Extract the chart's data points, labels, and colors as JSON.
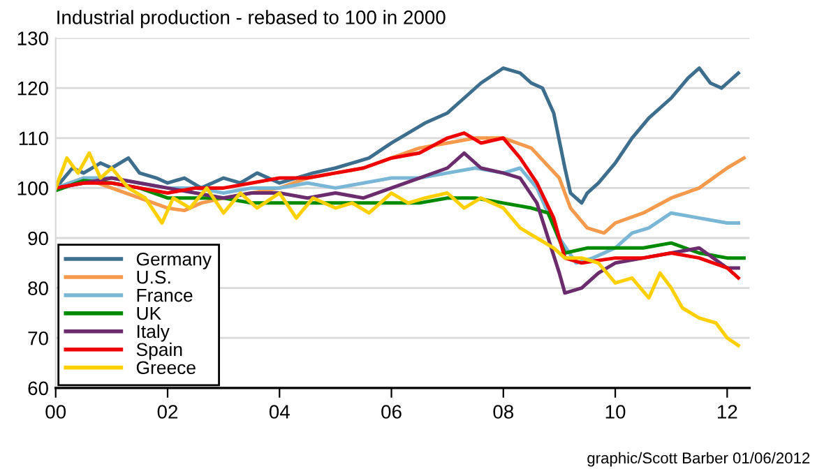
{
  "chart_data": {
    "type": "line",
    "title": "Industrial production - rebased to 100 in 2000",
    "annotations": [
      "graphic/Scott Barber 01/06/2012"
    ],
    "xlim": [
      0,
      12.4
    ],
    "xticks": [
      {
        "value": 0,
        "label": "00"
      },
      {
        "value": 2,
        "label": "02"
      },
      {
        "value": 4,
        "label": "04"
      },
      {
        "value": 6,
        "label": "06"
      },
      {
        "value": 8,
        "label": "08"
      },
      {
        "value": 10,
        "label": "10"
      },
      {
        "value": 12,
        "label": "12"
      }
    ],
    "ylim": [
      60,
      130
    ],
    "yticks": [
      60,
      70,
      80,
      90,
      100,
      110,
      120,
      130
    ],
    "grid": "y",
    "legend": "bottom left",
    "marker": "none",
    "line_style": "solid",
    "series": [
      {
        "name": "Germany",
        "color": "#3e6e8e",
        "x": [
          0,
          0.3,
          0.5,
          0.8,
          1.0,
          1.3,
          1.5,
          1.8,
          2.0,
          2.3,
          2.6,
          3.0,
          3.3,
          3.6,
          4.0,
          4.3,
          4.6,
          5.0,
          5.3,
          5.6,
          6.0,
          6.3,
          6.6,
          7.0,
          7.3,
          7.6,
          8.0,
          8.3,
          8.5,
          8.7,
          8.9,
          9.1,
          9.2,
          9.4,
          9.5,
          9.7,
          10.0,
          10.3,
          10.6,
          11.0,
          11.3,
          11.5,
          11.7,
          11.9,
          12.0,
          12.2
        ],
        "values": [
          100,
          104,
          103,
          105,
          104,
          106,
          103,
          102,
          101,
          102,
          100,
          102,
          101,
          103,
          101,
          102,
          103,
          104,
          105,
          106,
          109,
          111,
          113,
          115,
          118,
          121,
          124,
          123,
          121,
          120,
          115,
          104,
          99,
          97,
          99,
          101,
          105,
          110,
          114,
          118,
          122,
          124,
          121,
          120,
          121,
          123
        ]
      },
      {
        "name": "U.S.",
        "color": "#f59a4c",
        "x": [
          0,
          0.5,
          1.0,
          1.5,
          2.0,
          2.3,
          2.6,
          3.0,
          3.5,
          4.0,
          4.5,
          5.0,
          5.5,
          6.0,
          6.5,
          7.0,
          7.5,
          8.0,
          8.5,
          9.0,
          9.2,
          9.5,
          9.8,
          10.0,
          10.5,
          11.0,
          11.5,
          12.0,
          12.3
        ],
        "values": [
          100,
          102,
          100,
          98,
          96,
          95.5,
          97,
          98,
          99,
          100,
          102,
          103,
          104,
          106,
          108,
          109,
          110,
          110,
          108,
          102,
          96,
          92,
          91,
          93,
          95,
          98,
          100,
          104,
          106
        ]
      },
      {
        "name": "France",
        "color": "#7ab6d6",
        "x": [
          0,
          0.5,
          1,
          1.5,
          2,
          2.5,
          3,
          3.5,
          4,
          4.5,
          5,
          5.5,
          6,
          6.5,
          7,
          7.5,
          8,
          8.3,
          8.6,
          9.0,
          9.3,
          9.6,
          10,
          10.3,
          10.6,
          11,
          11.5,
          12,
          12.2
        ],
        "values": [
          100,
          102,
          102,
          101,
          100,
          100,
          99,
          100,
          100,
          101,
          100,
          101,
          102,
          102,
          103,
          104,
          103,
          104,
          100,
          90,
          85,
          86,
          88,
          91,
          92,
          95,
          94,
          93,
          93
        ]
      },
      {
        "name": "UK",
        "color": "#008a00",
        "x": [
          0,
          0.5,
          1,
          1.5,
          2,
          2.5,
          3,
          3.5,
          4,
          4.5,
          5,
          5.5,
          6,
          6.5,
          7,
          7.5,
          8,
          8.5,
          8.8,
          9.1,
          9.5,
          10,
          10.5,
          11,
          11.5,
          12,
          12.3
        ],
        "values": [
          99.5,
          101.5,
          101,
          100,
          98,
          98,
          98,
          97,
          97,
          97,
          97,
          97,
          97,
          97,
          98,
          98,
          97,
          96,
          95,
          87,
          88,
          88,
          88,
          89,
          87,
          86,
          86
        ]
      },
      {
        "name": "Italy",
        "color": "#6b2c6e",
        "x": [
          0,
          0.5,
          1,
          1.5,
          2,
          2.5,
          3,
          3.5,
          4,
          4.5,
          5,
          5.5,
          6,
          6.5,
          7,
          7.3,
          7.6,
          8,
          8.3,
          8.6,
          9.0,
          9.1,
          9.4,
          9.7,
          10,
          10.5,
          11,
          11.5,
          12,
          12.2
        ],
        "values": [
          100,
          101,
          102,
          101,
          100,
          99,
          98,
          99,
          99,
          98,
          99,
          98,
          100,
          102,
          104,
          107,
          104,
          103,
          102,
          97,
          83,
          79,
          80,
          83,
          85,
          86,
          87,
          88,
          84,
          84
        ]
      },
      {
        "name": "Spain",
        "color": "#ee0000",
        "x": [
          0,
          0.5,
          1,
          1.5,
          2,
          2.5,
          3,
          3.5,
          4,
          4.5,
          5,
          5.5,
          6,
          6.5,
          7,
          7.3,
          7.6,
          8,
          8.3,
          8.6,
          8.9,
          9.1,
          9.4,
          10,
          10.5,
          11,
          11.5,
          12,
          12.2
        ],
        "values": [
          100,
          101,
          101,
          100,
          99,
          100,
          100,
          101,
          102,
          102,
          103,
          104,
          106,
          107,
          110,
          111,
          109,
          110,
          106,
          101,
          94,
          86,
          85,
          86,
          86,
          87,
          86,
          84,
          82
        ]
      },
      {
        "name": "Greece",
        "color": "#ffd000",
        "x": [
          0,
          0.2,
          0.4,
          0.6,
          0.8,
          1.0,
          1.3,
          1.6,
          1.9,
          2.1,
          2.4,
          2.7,
          3.0,
          3.3,
          3.6,
          4.0,
          4.3,
          4.6,
          5.0,
          5.3,
          5.6,
          6.0,
          6.3,
          6.6,
          7.0,
          7.3,
          7.6,
          8.0,
          8.3,
          8.6,
          8.9,
          9.1,
          9.4,
          9.7,
          10.0,
          10.3,
          10.6,
          10.8,
          11.0,
          11.2,
          11.5,
          11.8,
          12.0,
          12.2
        ],
        "values": [
          100,
          106,
          103,
          107,
          102,
          104,
          100,
          98,
          93,
          98,
          96,
          100,
          95,
          99,
          96,
          99,
          94,
          98,
          96,
          97,
          95,
          99,
          97,
          98,
          99,
          96,
          98,
          96,
          92,
          90,
          88,
          86,
          86,
          85,
          81,
          82,
          78,
          83,
          80,
          76,
          74,
          73,
          70,
          68.5
        ]
      }
    ]
  }
}
